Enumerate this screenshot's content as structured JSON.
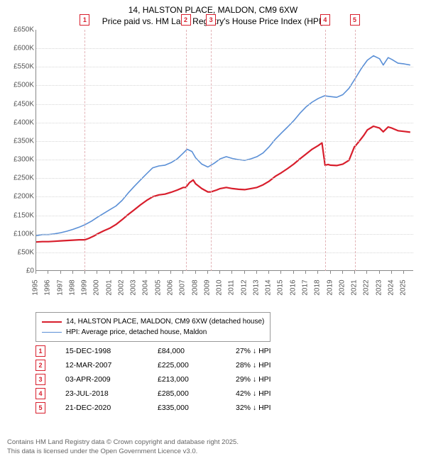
{
  "title_line1": "14, HALSTON PLACE, MALDON, CM9 6XW",
  "title_line2": "Price paid vs. HM Land Registry's House Price Index (HPI)",
  "title_fontsize": 12,
  "chart": {
    "type": "line",
    "background_color": "#ffffff",
    "grid_color": "#d6d6d6",
    "x": {
      "min": 1995,
      "max": 2025.8,
      "ticks": [
        1995,
        1996,
        1997,
        1998,
        1999,
        2000,
        2001,
        2002,
        2003,
        2004,
        2005,
        2006,
        2007,
        2008,
        2009,
        2010,
        2011,
        2012,
        2013,
        2014,
        2015,
        2016,
        2017,
        2018,
        2019,
        2020,
        2021,
        2022,
        2023,
        2024,
        2025
      ]
    },
    "y": {
      "min": 0,
      "max": 650000,
      "step": 50000,
      "label_prefix": "£",
      "label_suffix": "K",
      "label_divisor": 1000
    },
    "series": [
      {
        "name": "HPI: Average price, detached house, Maldon",
        "color": "#5a8fd6",
        "width": 1.6,
        "points": [
          [
            1995,
            95000
          ],
          [
            1995.5,
            98000
          ],
          [
            1996,
            98000
          ],
          [
            1996.5,
            100000
          ],
          [
            1997,
            103000
          ],
          [
            1997.5,
            107000
          ],
          [
            1998,
            112000
          ],
          [
            1998.5,
            118000
          ],
          [
            1999,
            125000
          ],
          [
            1999.5,
            134000
          ],
          [
            2000,
            145000
          ],
          [
            2000.5,
            155000
          ],
          [
            2001,
            165000
          ],
          [
            2001.5,
            175000
          ],
          [
            2002,
            190000
          ],
          [
            2002.5,
            210000
          ],
          [
            2003,
            228000
          ],
          [
            2003.5,
            245000
          ],
          [
            2004,
            262000
          ],
          [
            2004.5,
            278000
          ],
          [
            2005,
            283000
          ],
          [
            2005.5,
            285000
          ],
          [
            2006,
            292000
          ],
          [
            2006.5,
            302000
          ],
          [
            2007,
            318000
          ],
          [
            2007.3,
            328000
          ],
          [
            2007.7,
            322000
          ],
          [
            2008,
            305000
          ],
          [
            2008.5,
            288000
          ],
          [
            2009,
            280000
          ],
          [
            2009.5,
            290000
          ],
          [
            2010,
            302000
          ],
          [
            2010.5,
            308000
          ],
          [
            2011,
            303000
          ],
          [
            2011.5,
            300000
          ],
          [
            2012,
            298000
          ],
          [
            2012.5,
            302000
          ],
          [
            2013,
            308000
          ],
          [
            2013.5,
            318000
          ],
          [
            2014,
            335000
          ],
          [
            2014.5,
            355000
          ],
          [
            2015,
            372000
          ],
          [
            2015.5,
            388000
          ],
          [
            2016,
            405000
          ],
          [
            2016.5,
            425000
          ],
          [
            2017,
            442000
          ],
          [
            2017.5,
            455000
          ],
          [
            2018,
            465000
          ],
          [
            2018.5,
            472000
          ],
          [
            2019,
            470000
          ],
          [
            2019.5,
            468000
          ],
          [
            2020,
            475000
          ],
          [
            2020.5,
            492000
          ],
          [
            2021,
            518000
          ],
          [
            2021.5,
            545000
          ],
          [
            2022,
            568000
          ],
          [
            2022.5,
            580000
          ],
          [
            2023,
            572000
          ],
          [
            2023.3,
            555000
          ],
          [
            2023.7,
            575000
          ],
          [
            2024,
            570000
          ],
          [
            2024.5,
            560000
          ],
          [
            2025,
            558000
          ],
          [
            2025.5,
            555000
          ]
        ]
      },
      {
        "name": "14, HALSTON PLACE, MALDON, CM9 6XW (detached house)",
        "color": "#d81e2c",
        "width": 2.2,
        "points": [
          [
            1995,
            78000
          ],
          [
            1995.5,
            79000
          ],
          [
            1996,
            79000
          ],
          [
            1996.5,
            80000
          ],
          [
            1997,
            81000
          ],
          [
            1997.5,
            82000
          ],
          [
            1998,
            83000
          ],
          [
            1998.5,
            84000
          ],
          [
            1998.96,
            84000
          ],
          [
            1998.97,
            84000
          ],
          [
            1999.3,
            88000
          ],
          [
            1999.7,
            94000
          ],
          [
            2000,
            100000
          ],
          [
            2000.5,
            108000
          ],
          [
            2001,
            115000
          ],
          [
            2001.5,
            125000
          ],
          [
            2002,
            138000
          ],
          [
            2002.5,
            152000
          ],
          [
            2003,
            165000
          ],
          [
            2003.5,
            178000
          ],
          [
            2004,
            190000
          ],
          [
            2004.5,
            200000
          ],
          [
            2005,
            205000
          ],
          [
            2005.5,
            207000
          ],
          [
            2006,
            212000
          ],
          [
            2006.5,
            218000
          ],
          [
            2007,
            225000
          ],
          [
            2007.19,
            225000
          ],
          [
            2007.5,
            238000
          ],
          [
            2007.8,
            245000
          ],
          [
            2008,
            235000
          ],
          [
            2008.5,
            222000
          ],
          [
            2009,
            213000
          ],
          [
            2009.25,
            213000
          ],
          [
            2009.7,
            218000
          ],
          [
            2010,
            222000
          ],
          [
            2010.5,
            225000
          ],
          [
            2011,
            222000
          ],
          [
            2011.5,
            220000
          ],
          [
            2012,
            219000
          ],
          [
            2012.5,
            222000
          ],
          [
            2013,
            225000
          ],
          [
            2013.5,
            232000
          ],
          [
            2014,
            242000
          ],
          [
            2014.5,
            255000
          ],
          [
            2015,
            265000
          ],
          [
            2015.5,
            276000
          ],
          [
            2016,
            288000
          ],
          [
            2016.5,
            302000
          ],
          [
            2017,
            315000
          ],
          [
            2017.5,
            328000
          ],
          [
            2018,
            338000
          ],
          [
            2018.3,
            345000
          ],
          [
            2018.55,
            285000
          ],
          [
            2018.8,
            287000
          ],
          [
            2019,
            285000
          ],
          [
            2019.5,
            284000
          ],
          [
            2020,
            288000
          ],
          [
            2020.5,
            298000
          ],
          [
            2020.95,
            335000
          ],
          [
            2020.97,
            335000
          ],
          [
            2021.3,
            348000
          ],
          [
            2021.7,
            365000
          ],
          [
            2022,
            380000
          ],
          [
            2022.5,
            390000
          ],
          [
            2023,
            385000
          ],
          [
            2023.3,
            375000
          ],
          [
            2023.7,
            388000
          ],
          [
            2024,
            385000
          ],
          [
            2024.5,
            378000
          ],
          [
            2025,
            376000
          ],
          [
            2025.5,
            374000
          ]
        ]
      }
    ],
    "sale_markers": [
      {
        "n": "1",
        "x": 1998.96,
        "date": "15-DEC-1998",
        "price": "£84,000",
        "diff": "27% ↓ HPI",
        "vline_color": "#e2b3b7"
      },
      {
        "n": "2",
        "x": 2007.19,
        "date": "12-MAR-2007",
        "price": "£225,000",
        "diff": "28% ↓ HPI",
        "vline_color": "#e2b3b7"
      },
      {
        "n": "3",
        "x": 2009.25,
        "date": "03-APR-2009",
        "price": "£213,000",
        "diff": "29% ↓ HPI",
        "vline_color": "#e2b3b7"
      },
      {
        "n": "4",
        "x": 2018.56,
        "date": "23-JUL-2018",
        "price": "£285,000",
        "diff": "42% ↓ HPI",
        "vline_color": "#e2b3b7"
      },
      {
        "n": "5",
        "x": 2020.97,
        "date": "21-DEC-2020",
        "price": "£335,000",
        "diff": "32% ↓ HPI",
        "vline_color": "#e2b3b7"
      }
    ]
  },
  "legend": {
    "items": [
      {
        "color": "#d81e2c",
        "width": 2.2,
        "label": "14, HALSTON PLACE, MALDON, CM9 6XW (detached house)"
      },
      {
        "color": "#5a8fd6",
        "width": 1.6,
        "label": "HPI: Average price, detached house, Maldon"
      }
    ]
  },
  "footer_line1": "Contains HM Land Registry data © Crown copyright and database right 2025.",
  "footer_line2": "This data is licensed under the Open Government Licence v3.0."
}
